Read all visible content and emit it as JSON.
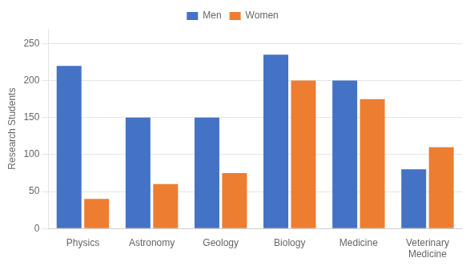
{
  "chart_data": {
    "type": "bar",
    "categories": [
      "Physics",
      "Astronomy",
      "Geology",
      "Biology",
      "Medicine",
      "Veterinary\nMedicine"
    ],
    "series": [
      {
        "name": "Men",
        "color": "#4472C4",
        "values": [
          220,
          150,
          150,
          235,
          200,
          80
        ]
      },
      {
        "name": "Women",
        "color": "#ED7D31",
        "values": [
          40,
          60,
          75,
          200,
          175,
          110
        ]
      }
    ],
    "ylabel": "Research Students",
    "ylim": [
      0,
      270
    ],
    "yticks": [
      0,
      50,
      100,
      150,
      200,
      250
    ],
    "grid": true,
    "legend": "top"
  }
}
